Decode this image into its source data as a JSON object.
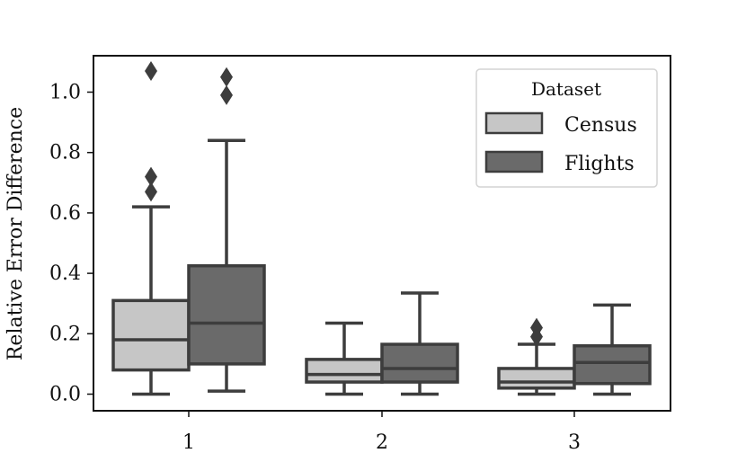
{
  "chart_data": {
    "type": "box",
    "ylabel": "Relative Error Difference",
    "xlabel": "",
    "categories": [
      "1",
      "2",
      "3"
    ],
    "ylim": [
      -0.05,
      1.12
    ],
    "yticks": [
      0.0,
      0.2,
      0.4,
      0.6,
      0.8,
      1.0
    ],
    "ytick_labels": [
      "0.0",
      "0.2",
      "0.4",
      "0.6",
      "0.8",
      "1.0"
    ],
    "grid": false,
    "legend": {
      "title": "Dataset",
      "placement": "top-right"
    },
    "series": [
      {
        "name": "Census",
        "color": "#c6c6c6",
        "boxes": [
          {
            "category": "1",
            "whisker_low": 0.0,
            "q1": 0.08,
            "median": 0.18,
            "q3": 0.31,
            "whisker_high": 0.62,
            "outliers": [
              0.67,
              0.72,
              1.07
            ]
          },
          {
            "category": "2",
            "whisker_low": 0.0,
            "q1": 0.04,
            "median": 0.065,
            "q3": 0.115,
            "whisker_high": 0.235,
            "outliers": []
          },
          {
            "category": "3",
            "whisker_low": 0.0,
            "q1": 0.02,
            "median": 0.04,
            "q3": 0.085,
            "whisker_high": 0.165,
            "outliers": [
              0.19,
              0.22
            ]
          }
        ]
      },
      {
        "name": "Flights",
        "color": "#6a6a6a",
        "boxes": [
          {
            "category": "1",
            "whisker_low": 0.01,
            "q1": 0.1,
            "median": 0.235,
            "q3": 0.425,
            "whisker_high": 0.84,
            "outliers": [
              0.99,
              1.05
            ]
          },
          {
            "category": "2",
            "whisker_low": 0.0,
            "q1": 0.04,
            "median": 0.085,
            "q3": 0.165,
            "whisker_high": 0.335,
            "outliers": []
          },
          {
            "category": "3",
            "whisker_low": 0.0,
            "q1": 0.035,
            "median": 0.105,
            "q3": 0.16,
            "whisker_high": 0.295,
            "outliers": []
          }
        ]
      }
    ]
  }
}
